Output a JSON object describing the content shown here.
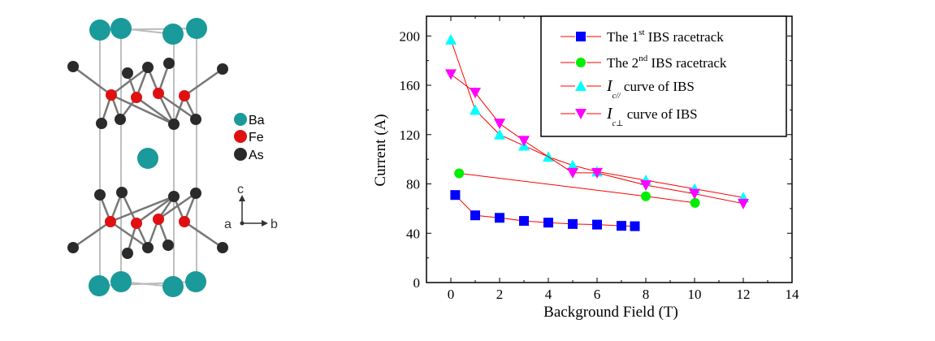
{
  "structure": {
    "legend": [
      {
        "label": "Ba",
        "color": "#1a9a9a"
      },
      {
        "label": "Fe",
        "color": "#e01010"
      },
      {
        "label": "As",
        "color": "#2a2a2a"
      }
    ],
    "axes": {
      "c": "c",
      "a": "a",
      "b": "b"
    }
  },
  "chart_data": {
    "type": "line",
    "xlabel": "Background Field (T)",
    "ylabel": "Current (A)",
    "xlim": [
      -1,
      14
    ],
    "ylim": [
      0,
      216
    ],
    "xticks": [
      "0",
      "2",
      "4",
      "6",
      "8",
      "10",
      "12",
      "14"
    ],
    "yticks": [
      "0",
      "40",
      "80",
      "120",
      "160",
      "200"
    ],
    "legend_position": "top-right",
    "line_color": "#ff0000",
    "series": [
      {
        "name": "The 1st IBS racetrack",
        "label_pre": "The 1",
        "label_sup": "st",
        "label_post": " IBS racetrack",
        "marker": "square",
        "color": "#0000ff",
        "x": [
          0.18,
          1,
          2,
          3,
          4,
          5,
          6,
          7,
          7.55
        ],
        "y": [
          71,
          54.5,
          52.5,
          50,
          48.6,
          47.5,
          47,
          46,
          45.7
        ]
      },
      {
        "name": "The 2nd IBS racetrack",
        "label_pre": "The 2",
        "label_sup": "nd",
        "label_post": " IBS racetrack",
        "marker": "circle",
        "color": "#00ee00",
        "x": [
          0.34,
          8,
          10.02
        ],
        "y": [
          88.6,
          70,
          64.6
        ]
      },
      {
        "name": "Ic// curve of IBS",
        "label_pre": "I",
        "label_sub": "c//",
        "label_post": " curve of IBS",
        "marker": "triangle-up",
        "color": "#00ffff",
        "x": [
          0,
          1,
          2,
          3,
          4,
          5,
          6,
          8,
          10,
          12
        ],
        "y": [
          197,
          140,
          120,
          111,
          102,
          95,
          90,
          83,
          76,
          69
        ]
      },
      {
        "name": "Ic⊥ curve of IBS",
        "label_pre": "I",
        "label_sub": "c⊥",
        "label_post": " curve of IBS",
        "marker": "triangle-down",
        "color": "#ff00ff",
        "x": [
          0,
          1,
          2,
          3,
          5,
          6,
          8,
          10,
          12
        ],
        "y": [
          169,
          154,
          129,
          115,
          89,
          89,
          79,
          72,
          64
        ]
      }
    ]
  }
}
